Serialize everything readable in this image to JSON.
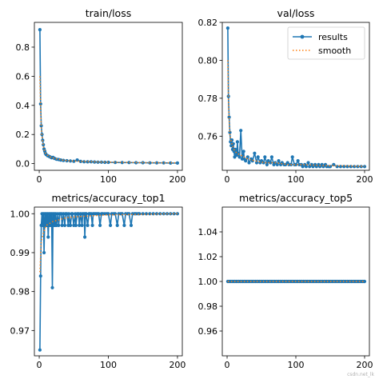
{
  "watermark": "csdn.net_lk",
  "chart_data": [
    {
      "type": "line",
      "title": "train/loss",
      "xlabel": "",
      "ylabel": "",
      "xlim": [
        -7,
        207
      ],
      "ylim": [
        -0.046,
        0.97
      ],
      "xticks": [
        0,
        100,
        200
      ],
      "yticks": [
        0.0,
        0.2,
        0.4,
        0.6,
        0.8
      ],
      "ytick_labels": [
        "0.0",
        "0.2",
        "0.4",
        "0.6",
        "0.8"
      ],
      "legend": null,
      "series": [
        {
          "name": "results",
          "color": "#1f77b4",
          "x": [
            1,
            2,
            3,
            4,
            5,
            6,
            7,
            8,
            9,
            10,
            12,
            14,
            16,
            18,
            20,
            22,
            25,
            28,
            31,
            35,
            40,
            45,
            50,
            55,
            60,
            65,
            70,
            75,
            80,
            85,
            90,
            95,
            100,
            110,
            120,
            130,
            140,
            150,
            160,
            170,
            180,
            190,
            200
          ],
          "y": [
            0.92,
            0.41,
            0.26,
            0.2,
            0.16,
            0.13,
            0.1,
            0.085,
            0.07,
            0.062,
            0.055,
            0.05,
            0.045,
            0.04,
            0.043,
            0.036,
            0.03,
            0.028,
            0.025,
            0.022,
            0.02,
            0.018,
            0.016,
            0.025,
            0.015,
            0.013,
            0.012,
            0.013,
            0.011,
            0.01,
            0.01,
            0.009,
            0.009,
            0.008,
            0.007,
            0.007,
            0.006,
            0.006,
            0.005,
            0.005,
            0.005,
            0.004,
            0.004
          ]
        },
        {
          "name": "smooth",
          "color": "#ff7f0e",
          "x": [
            1,
            2,
            3,
            4,
            5,
            6,
            8,
            10,
            14,
            18,
            22,
            28,
            35,
            45,
            60,
            80,
            100,
            130,
            160,
            200
          ],
          "y": [
            0.6,
            0.38,
            0.25,
            0.19,
            0.15,
            0.12,
            0.08,
            0.065,
            0.05,
            0.042,
            0.036,
            0.03,
            0.023,
            0.019,
            0.016,
            0.012,
            0.01,
            0.008,
            0.006,
            0.005
          ]
        }
      ]
    },
    {
      "type": "line",
      "title": "val/loss",
      "xlabel": "",
      "ylabel": "",
      "xlim": [
        -7,
        207
      ],
      "ylim": [
        0.742,
        0.82
      ],
      "xticks": [
        0,
        100,
        200
      ],
      "yticks": [
        0.76,
        0.78,
        0.8,
        0.82
      ],
      "ytick_labels": [
        "0.76",
        "0.78",
        "0.80",
        "0.82"
      ],
      "legend": "top-right",
      "series": [
        {
          "name": "results",
          "color": "#1f77b4",
          "x": [
            1,
            2,
            3,
            4,
            5,
            6,
            7,
            8,
            9,
            10,
            11,
            12,
            14,
            15,
            16,
            18,
            20,
            22,
            24,
            25,
            27,
            30,
            32,
            35,
            37,
            40,
            43,
            45,
            48,
            50,
            53,
            55,
            58,
            60,
            63,
            65,
            68,
            70,
            73,
            75,
            78,
            80,
            83,
            85,
            88,
            90,
            93,
            95,
            98,
            100,
            103,
            105,
            108,
            110,
            113,
            115,
            118,
            120,
            123,
            125,
            128,
            130,
            133,
            135,
            138,
            140,
            143,
            145,
            148,
            150,
            155,
            160,
            165,
            170,
            175,
            180,
            185,
            190,
            195,
            200
          ],
          "y": [
            0.817,
            0.781,
            0.77,
            0.762,
            0.757,
            0.755,
            0.758,
            0.753,
            0.756,
            0.752,
            0.749,
            0.753,
            0.75,
            0.757,
            0.751,
            0.749,
            0.763,
            0.748,
            0.752,
            0.748,
            0.747,
            0.749,
            0.746,
            0.748,
            0.747,
            0.751,
            0.746,
            0.749,
            0.746,
            0.747,
            0.746,
            0.749,
            0.745,
            0.747,
            0.746,
            0.749,
            0.745,
            0.746,
            0.745,
            0.747,
            0.745,
            0.746,
            0.745,
            0.745,
            0.746,
            0.745,
            0.745,
            0.749,
            0.745,
            0.745,
            0.747,
            0.745,
            0.745,
            0.744,
            0.745,
            0.744,
            0.746,
            0.744,
            0.745,
            0.744,
            0.745,
            0.744,
            0.745,
            0.744,
            0.745,
            0.744,
            0.745,
            0.744,
            0.744,
            0.744,
            0.745,
            0.744,
            0.744,
            0.744,
            0.744,
            0.744,
            0.744,
            0.744,
            0.744,
            0.744
          ]
        },
        {
          "name": "smooth",
          "color": "#ff7f0e",
          "x": [
            1,
            2,
            3,
            4,
            6,
            8,
            10,
            14,
            20,
            30,
            40,
            55,
            70,
            90,
            110,
            140,
            170,
            200
          ],
          "y": [
            0.8,
            0.778,
            0.768,
            0.761,
            0.757,
            0.755,
            0.753,
            0.751,
            0.75,
            0.748,
            0.747,
            0.746,
            0.746,
            0.745,
            0.745,
            0.7445,
            0.7443,
            0.7441
          ]
        }
      ]
    },
    {
      "type": "line",
      "title": "metrics/accuracy_top1",
      "xlabel": "",
      "ylabel": "",
      "xlim": [
        -7,
        207
      ],
      "ylim": [
        0.9635,
        1.0017
      ],
      "xticks": [
        0,
        100,
        200
      ],
      "yticks": [
        0.97,
        0.98,
        0.99,
        1.0
      ],
      "ytick_labels": [
        "0.97",
        "0.98",
        "0.99",
        "1.00"
      ],
      "legend": null,
      "series": [
        {
          "name": "results",
          "color": "#1f77b4",
          "x": [
            1,
            2,
            3,
            4,
            5,
            6,
            7,
            8,
            9,
            10,
            11,
            12,
            13,
            14,
            15,
            16,
            17,
            18,
            19,
            20,
            21,
            22,
            23,
            24,
            25,
            27,
            28,
            30,
            32,
            33,
            35,
            37,
            38,
            40,
            42,
            43,
            45,
            47,
            48,
            50,
            52,
            53,
            55,
            57,
            58,
            60,
            62,
            63,
            65,
            66,
            67,
            68,
            70,
            72,
            73,
            75,
            77,
            78,
            80,
            82,
            84,
            86,
            88,
            90,
            92,
            95,
            98,
            100,
            103,
            105,
            108,
            110,
            113,
            115,
            118,
            120,
            123,
            125,
            128,
            130,
            133,
            135,
            138,
            140,
            143,
            145,
            150,
            155,
            160,
            165,
            170,
            175,
            180,
            185,
            190,
            195,
            200
          ],
          "y": [
            0.965,
            0.984,
            0.997,
            1.0,
            0.997,
            1.0,
            0.99,
            1.0,
            0.997,
            1.0,
            0.997,
            1.0,
            0.994,
            1.0,
            0.997,
            1.0,
            0.997,
            1.0,
            0.981,
            1.0,
            0.997,
            1.0,
            0.997,
            1.0,
            0.997,
            1.0,
            0.997,
            1.0,
            1.0,
            0.997,
            1.0,
            0.997,
            1.0,
            1.0,
            0.997,
            1.0,
            0.997,
            1.0,
            1.0,
            0.997,
            1.0,
            0.997,
            1.0,
            1.0,
            0.997,
            1.0,
            0.997,
            1.0,
            1.0,
            0.994,
            1.0,
            1.0,
            0.997,
            1.0,
            1.0,
            1.0,
            0.997,
            1.0,
            1.0,
            1.0,
            1.0,
            1.0,
            0.997,
            1.0,
            1.0,
            1.0,
            1.0,
            1.0,
            0.997,
            1.0,
            1.0,
            1.0,
            0.997,
            1.0,
            1.0,
            1.0,
            0.997,
            1.0,
            1.0,
            1.0,
            0.997,
            1.0,
            1.0,
            1.0,
            1.0,
            1.0,
            1.0,
            1.0,
            1.0,
            1.0,
            1.0,
            1.0,
            1.0,
            1.0,
            1.0,
            1.0,
            1.0
          ]
        },
        {
          "name": "smooth",
          "color": "#ff7f0e",
          "x": [
            1,
            3,
            6,
            10,
            15,
            20,
            30,
            40,
            60,
            80,
            100,
            130,
            160,
            200
          ],
          "y": [
            0.985,
            0.993,
            0.995,
            0.997,
            0.9975,
            0.998,
            0.9985,
            0.999,
            0.9993,
            0.9995,
            0.9997,
            0.9998,
            0.9999,
            1.0
          ]
        }
      ]
    },
    {
      "type": "line",
      "title": "metrics/accuracy_top5",
      "xlabel": "",
      "ylabel": "",
      "xlim": [
        -7,
        207
      ],
      "ylim": [
        0.94,
        1.06
      ],
      "xticks": [
        0,
        100,
        200
      ],
      "yticks": [
        0.96,
        0.98,
        1.0,
        1.02,
        1.04
      ],
      "ytick_labels": [
        "0.96",
        "0.98",
        "1.00",
        "1.02",
        "1.04"
      ],
      "legend": null,
      "series": [
        {
          "name": "results",
          "color": "#1f77b4",
          "constant": 1.0,
          "x_range": [
            1,
            200
          ],
          "step": 2
        },
        {
          "name": "smooth",
          "color": "#ff7f0e",
          "constant": 1.0,
          "x_range": [
            1,
            200
          ]
        }
      ]
    }
  ]
}
